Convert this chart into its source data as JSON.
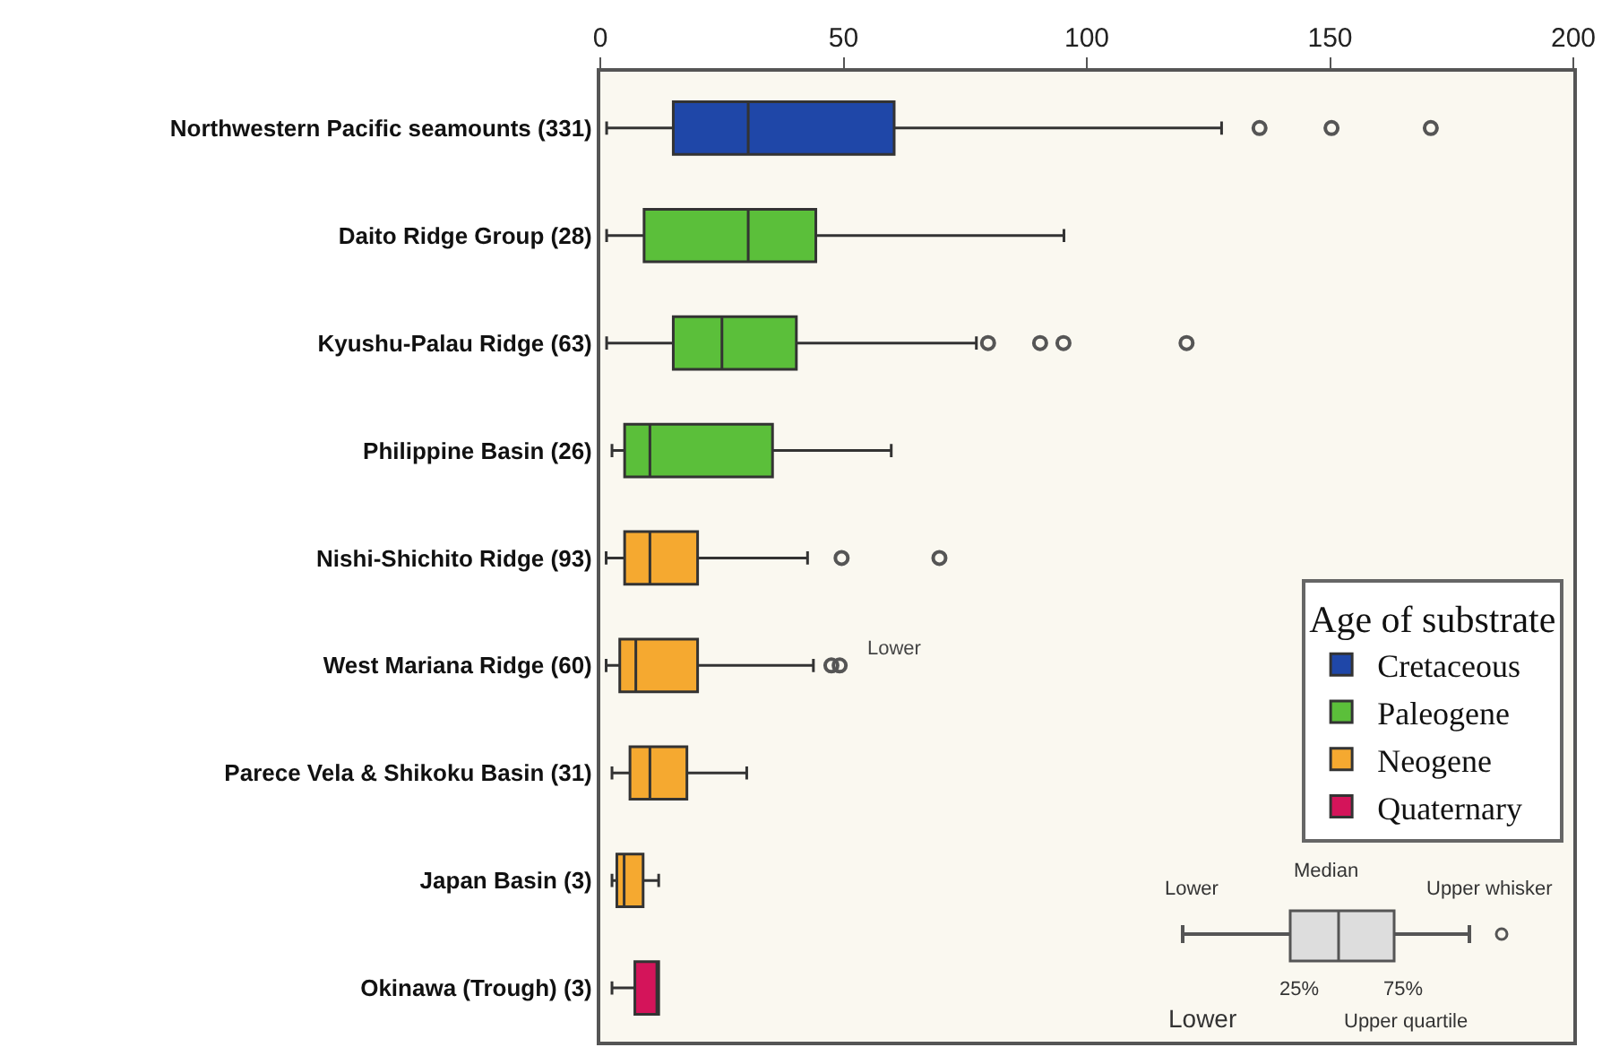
{
  "chart_data": {
    "type": "box",
    "orientation": "horizontal",
    "legend_title": "Age of substrate",
    "legend": "bottom right",
    "grid": false,
    "categories": [
      "Northwestern Pacific seamounts (331)",
      "Daito Ridge Group (28)",
      "Kyushu-Palau Ridge (63)",
      "Philippine Basin (26)",
      "Nishi-Shichito Ridge (93)",
      "West Mariana Ridge (60)",
      "Parece Vela & Shikoku Basin (31)",
      "Japan Basin (3)",
      "Okinawa (Trough) (3)"
    ],
    "xlim": [
      0,
      200
    ],
    "xticks": [
      0,
      50,
      100,
      150,
      200
    ],
    "series": [
      {
        "name": "Cretaceous",
        "color": "#1f47a8",
        "boxes": [
          {
            "low": 1.3,
            "q1": 15,
            "median": 30.4,
            "q3": 60.4,
            "high": 127.7,
            "outliers": [
              135.5,
              150.3,
              170.7
            ]
          },
          null,
          null,
          null,
          null,
          null,
          null,
          null,
          null
        ]
      },
      {
        "name": "Paleogene",
        "color": "#5bbf3a",
        "boxes": [
          null,
          {
            "low": 1.3,
            "q1": 9,
            "median": 30.4,
            "q3": 44.3,
            "high": 95.3
          },
          {
            "low": 1.3,
            "q1": 15,
            "median": 25,
            "q3": 40.3,
            "high": 77.3,
            "outliers": [
              79.7,
              90.4,
              95.2,
              120.5
            ]
          },
          {
            "low": 2.4,
            "q1": 5,
            "median": 10.2,
            "q3": 35.4,
            "high": 59.8
          },
          null,
          null,
          null,
          null,
          null
        ]
      },
      {
        "name": "Neogene",
        "color": "#f5a930",
        "boxes": [
          null,
          null,
          null,
          null,
          {
            "low": 1.2,
            "q1": 5,
            "median": 10.2,
            "q3": 20,
            "high": 42.6,
            "outliers": [
              49.6,
              69.7
            ]
          },
          {
            "low": 1.2,
            "q1": 4,
            "median": 7.3,
            "q3": 20,
            "high": 43.8,
            "outliers": [
              47.5,
              49.2
            ]
          },
          {
            "low": 2.4,
            "q1": 6.1,
            "median": 10.2,
            "q3": 17.8,
            "high": 30.1
          },
          {
            "low": 2.4,
            "q1": 3.4,
            "median": 4.9,
            "q3": 8.8,
            "high": 12
          },
          null
        ]
      },
      {
        "name": "Quaternary",
        "color": "#d4145a",
        "boxes": [
          null,
          null,
          null,
          null,
          null,
          null,
          null,
          null,
          {
            "low": 2.4,
            "q1": 7.1,
            "median": 12,
            "q3": 12,
            "high": 12
          }
        ]
      }
    ],
    "annotations": [
      "Lower",
      "Lower",
      "Median",
      "Upper whisker",
      "25%",
      "75%",
      "Lower",
      "Upper quartile"
    ]
  }
}
